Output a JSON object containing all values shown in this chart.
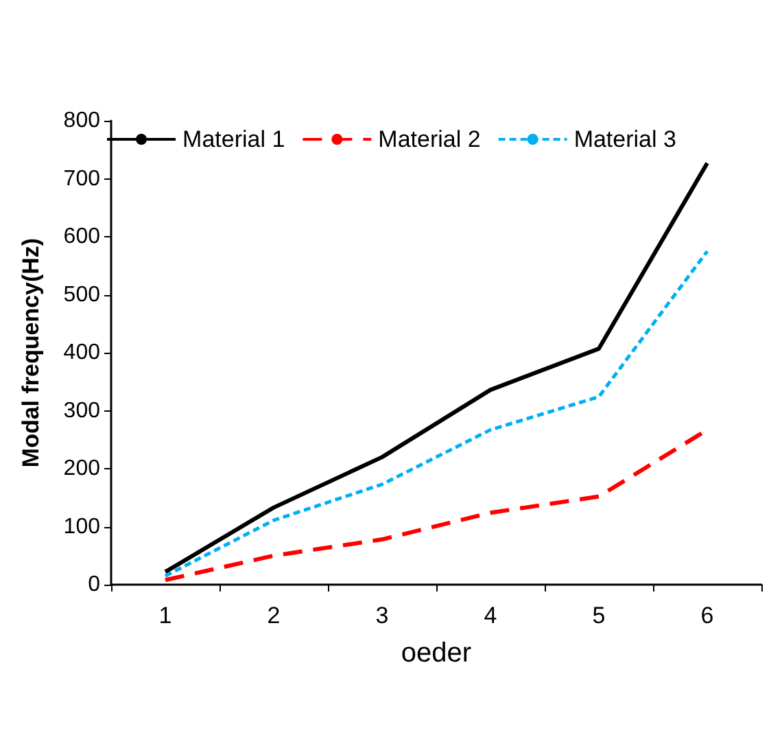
{
  "chart_data": {
    "type": "line",
    "xlabel": "oeder",
    "ylabel": "Modal frequency(Hz)",
    "categories": [
      "1",
      "2",
      "3",
      "4",
      "5",
      "6"
    ],
    "series": [
      {
        "name": "Material 1",
        "color": "#000000",
        "line_style": "solid",
        "values": [
          22,
          133,
          220,
          336,
          407,
          727
        ]
      },
      {
        "name": "Material 2",
        "color": "#ff0000",
        "line_style": "dashed",
        "values": [
          8,
          50,
          78,
          124,
          152,
          267
        ]
      },
      {
        "name": "Material 3",
        "color": "#00b0f0",
        "line_style": "dotted",
        "values": [
          15,
          111,
          173,
          267,
          324,
          575
        ]
      }
    ],
    "ylim": [
      0,
      800
    ],
    "yticks": [
      0,
      100,
      200,
      300,
      400,
      500,
      600,
      700,
      800
    ],
    "grid": false,
    "legend": "top",
    "marker": "none"
  }
}
